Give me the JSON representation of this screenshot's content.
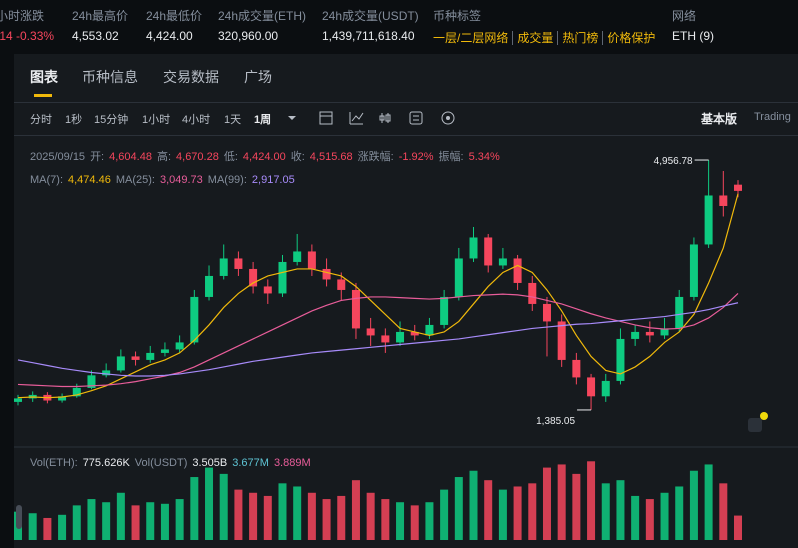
{
  "header": {
    "stats": [
      {
        "label": "小时涨跌",
        "value": ".14 -0.33%"
      },
      {
        "label": "24h最高价",
        "value": "4,553.02"
      },
      {
        "label": "24h最低价",
        "value": "4,424.00"
      },
      {
        "label": "24h成交量(ETH)",
        "value": "320,960.00"
      },
      {
        "label": "24h成交量(USDT)",
        "value": "1,439,711,618.40"
      }
    ],
    "tags_label": "币种标签",
    "tags": [
      "一层/二层网络",
      "成交量",
      "热门榜",
      "价格保护"
    ],
    "network_label": "网络",
    "network": "ETH (9)"
  },
  "tabs": [
    "图表",
    "币种信息",
    "交易数据",
    "广场"
  ],
  "toolbar": {
    "intervals": [
      "分时",
      "1秒",
      "15分钟",
      "1小时",
      "4小时",
      "1天",
      "1周"
    ],
    "modes": [
      "基本版",
      "Trading"
    ]
  },
  "legend": {
    "date": "2025/09/15",
    "ohlc": [
      {
        "label": "开:",
        "value": "4,604.48"
      },
      {
        "label": "高:",
        "value": "4,670.28"
      },
      {
        "label": "低:",
        "value": "4,424.00"
      },
      {
        "label": "收:",
        "value": "4,515.68"
      },
      {
        "label": "涨跌幅:",
        "value": "-1.92%"
      },
      {
        "label": "振幅:",
        "value": "5.34%"
      }
    ],
    "ma": [
      {
        "label": "MA(7):",
        "value": "4,474.46",
        "color": "#f0b90b"
      },
      {
        "label": "MA(25):",
        "value": "3,049.73",
        "color": "#e85d9a"
      },
      {
        "label": "MA(99):",
        "value": "2,917.05",
        "color": "#a78bfa"
      }
    ],
    "vol": [
      {
        "label": "Vol(ETH):",
        "value": "775.626K",
        "color": "#eaecef"
      },
      {
        "label": "Vol(USDT)",
        "value": "3.505B",
        "color": "#eaecef"
      },
      {
        "label": "",
        "value": "3.677M",
        "color": "#5ec4d4"
      },
      {
        "label": "",
        "value": "3.889M",
        "color": "#e85d9a"
      }
    ]
  },
  "chart_data": {
    "type": "candlestick",
    "up_color": "#0ecb81",
    "down_color": "#f6465d",
    "ylim": [
      1170,
      5100
    ],
    "vol_ylim": [
      0,
      2700000
    ],
    "high_label": "4,956.78",
    "low_label": "1,385.05",
    "candles": [
      [
        1500,
        1600,
        1450,
        1550
      ],
      [
        1550,
        1650,
        1500,
        1600
      ],
      [
        1600,
        1640,
        1480,
        1520
      ],
      [
        1520,
        1620,
        1490,
        1580
      ],
      [
        1580,
        1760,
        1560,
        1700
      ],
      [
        1700,
        1950,
        1680,
        1880
      ],
      [
        1880,
        2050,
        1850,
        1950
      ],
      [
        1950,
        2250,
        1920,
        2150
      ],
      [
        2150,
        2220,
        2020,
        2100
      ],
      [
        2100,
        2300,
        2060,
        2200
      ],
      [
        2200,
        2350,
        2150,
        2250
      ],
      [
        2250,
        2450,
        2200,
        2350
      ],
      [
        2350,
        3100,
        2320,
        3000
      ],
      [
        3000,
        3450,
        2950,
        3300
      ],
      [
        3300,
        3750,
        3250,
        3550
      ],
      [
        3550,
        3650,
        3300,
        3400
      ],
      [
        3400,
        3500,
        3050,
        3150
      ],
      [
        3150,
        3250,
        2900,
        3050
      ],
      [
        3050,
        3600,
        3000,
        3500
      ],
      [
        3500,
        3900,
        3450,
        3650
      ],
      [
        3650,
        3750,
        3300,
        3400
      ],
      [
        3400,
        3550,
        3150,
        3250
      ],
      [
        3250,
        3350,
        2950,
        3100
      ],
      [
        3100,
        3200,
        2400,
        2550
      ],
      [
        2550,
        2700,
        2300,
        2450
      ],
      [
        2450,
        2550,
        2200,
        2350
      ],
      [
        2350,
        2650,
        2300,
        2500
      ],
      [
        2500,
        2600,
        2380,
        2450
      ],
      [
        2450,
        2700,
        2400,
        2600
      ],
      [
        2600,
        3100,
        2550,
        3000
      ],
      [
        3000,
        3700,
        2950,
        3550
      ],
      [
        3550,
        4000,
        3500,
        3850
      ],
      [
        3850,
        3900,
        3350,
        3450
      ],
      [
        3450,
        3700,
        3400,
        3550
      ],
      [
        3550,
        3600,
        3100,
        3200
      ],
      [
        3200,
        3300,
        2800,
        2900
      ],
      [
        2900,
        3000,
        2150,
        2650
      ],
      [
        2650,
        2750,
        2000,
        2100
      ],
      [
        2100,
        2200,
        1750,
        1850
      ],
      [
        1850,
        1900,
        1385.05,
        1580
      ],
      [
        1580,
        1900,
        1500,
        1800
      ],
      [
        1800,
        2550,
        1750,
        2400
      ],
      [
        2400,
        2600,
        2300,
        2500
      ],
      [
        2500,
        2650,
        2350,
        2450
      ],
      [
        2450,
        2700,
        2400,
        2550
      ],
      [
        2550,
        3100,
        2500,
        3000
      ],
      [
        3000,
        3850,
        2950,
        3750
      ],
      [
        3750,
        4956.78,
        3700,
        4450
      ],
      [
        4450,
        4800,
        4150,
        4300
      ],
      [
        4604.48,
        4670.28,
        4424.0,
        4515.68
      ]
    ],
    "volumes": [
      900000,
      850000,
      700000,
      800000,
      1100000,
      1300000,
      1200000,
      1500000,
      1100000,
      1200000,
      1150000,
      1300000,
      2000000,
      2300000,
      2100000,
      1600000,
      1500000,
      1400000,
      1800000,
      1700000,
      1500000,
      1300000,
      1400000,
      1900000,
      1500000,
      1300000,
      1200000,
      1100000,
      1200000,
      1600000,
      2000000,
      2200000,
      1900000,
      1600000,
      1700000,
      1800000,
      2300000,
      2400000,
      2100000,
      2500000,
      1800000,
      1900000,
      1400000,
      1300000,
      1500000,
      1700000,
      2200000,
      2400000,
      1800000,
      775626
    ],
    "ma_series": [
      {
        "color": "#f0b90b",
        "values": [
          1560,
          1570,
          1560,
          1570,
          1600,
          1660,
          1730,
          1830,
          1930,
          2030,
          2100,
          2200,
          2380,
          2600,
          2850,
          3050,
          3200,
          3300,
          3350,
          3400,
          3400,
          3350,
          3300,
          3150,
          2950,
          2750,
          2550,
          2500,
          2450,
          2500,
          2650,
          2900,
          3150,
          3350,
          3450,
          3350,
          3100,
          2800,
          2450,
          2150,
          1950,
          1900,
          2000,
          2150,
          2350,
          2500,
          2750,
          3200,
          3700,
          4474.46
        ]
      },
      {
        "color": "#e85d9a",
        "values": [
          1750,
          1740,
          1730,
          1720,
          1720,
          1730,
          1740,
          1760,
          1790,
          1830,
          1870,
          1920,
          2000,
          2100,
          2200,
          2300,
          2400,
          2500,
          2600,
          2700,
          2800,
          2880,
          2950,
          2980,
          3000,
          3000,
          2990,
          2980,
          2970,
          2980,
          3000,
          3020,
          3030,
          3040,
          3030,
          3000,
          2950,
          2900,
          2830,
          2760,
          2700,
          2650,
          2600,
          2560,
          2540,
          2550,
          2600,
          2700,
          2850,
          3049.73
        ]
      },
      {
        "color": "#a78bfa",
        "values": [
          2100,
          2060,
          2020,
          1980,
          1950,
          1920,
          1900,
          1880,
          1870,
          1870,
          1880,
          1900,
          1930,
          1960,
          2000,
          2040,
          2080,
          2110,
          2140,
          2170,
          2200,
          2220,
          2240,
          2260,
          2280,
          2300,
          2320,
          2340,
          2360,
          2380,
          2400,
          2430,
          2460,
          2490,
          2520,
          2550,
          2570,
          2590,
          2610,
          2620,
          2640,
          2660,
          2680,
          2700,
          2720,
          2750,
          2780,
          2820,
          2870,
          2917.05
        ]
      }
    ]
  }
}
